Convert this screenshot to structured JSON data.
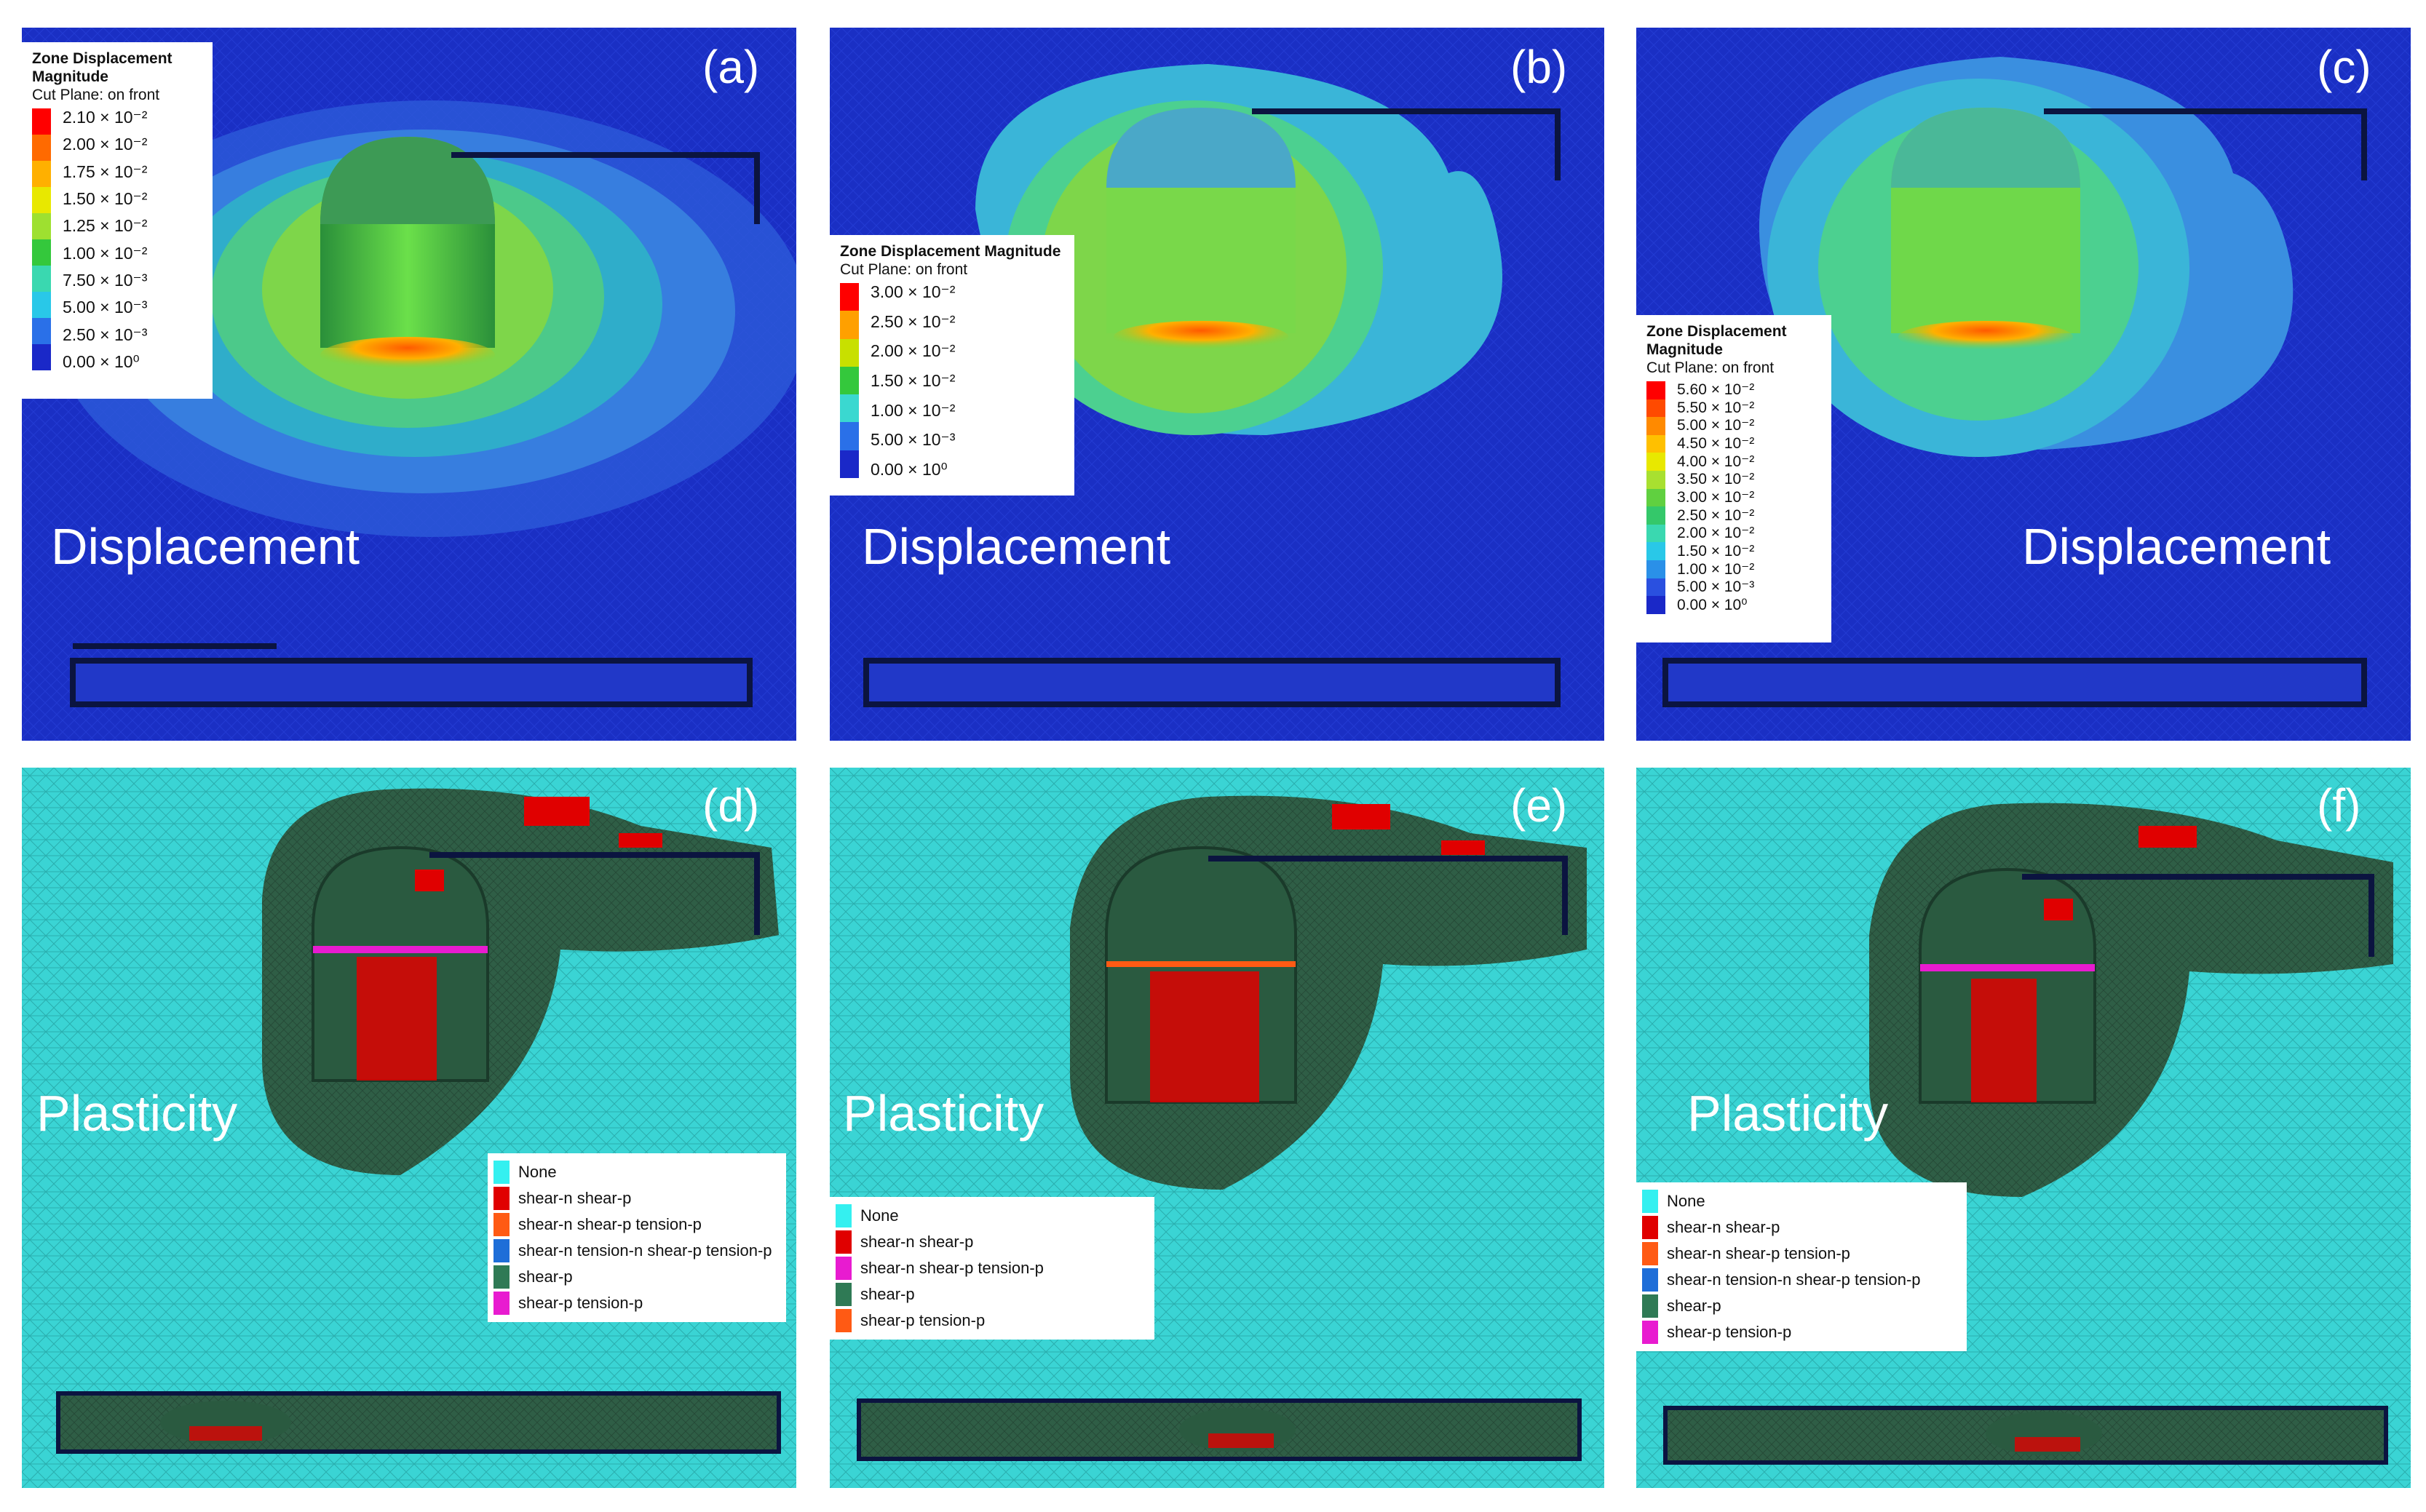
{
  "colors": {
    "blue_bg": "#1a2fc4",
    "mesh_cyan": "#34d3d3",
    "plastic_green": "#2f5e46",
    "shear_n_shear_p": "#e00000",
    "orange": "#ff5a14",
    "magenta": "#e81bd0",
    "tension_blue": "#1e6ed8"
  },
  "panels": {
    "a": {
      "label": "(a)",
      "title": "Displacement",
      "legend": {
        "line1": "Zone Displacement",
        "line2": "Magnitude",
        "sub": "Cut Plane: on front",
        "values": [
          "2.10 × 10⁻²",
          "2.00 × 10⁻²",
          "1.75 × 10⁻²",
          "1.50 × 10⁻²",
          "1.25 × 10⁻²",
          "1.00 × 10⁻²",
          "7.50 × 10⁻³",
          "5.00 × 10⁻³",
          "2.50 × 10⁻³",
          "0.00 × 10⁰"
        ]
      }
    },
    "b": {
      "label": "(b)",
      "title": "Displacement",
      "legend": {
        "line1": "Zone Displacement Magnitude",
        "sub": "Cut Plane: on front",
        "values": [
          "3.00 × 10⁻²",
          "2.50 × 10⁻²",
          "2.00 × 10⁻²",
          "1.50 × 10⁻²",
          "1.00 × 10⁻²",
          "5.00 × 10⁻³",
          "0.00 × 10⁰"
        ]
      }
    },
    "c": {
      "label": "(c)",
      "title": "Displacement",
      "legend": {
        "line1": "Zone Displacement",
        "line2": "Magnitude",
        "sub": "Cut Plane: on front",
        "values": [
          "5.60 × 10⁻²",
          "5.50 × 10⁻²",
          "5.00 × 10⁻²",
          "4.50 × 10⁻²",
          "4.00 × 10⁻²",
          "3.50 × 10⁻²",
          "3.00 × 10⁻²",
          "2.50 × 10⁻²",
          "2.00 × 10⁻²",
          "1.50 × 10⁻²",
          "1.00 × 10⁻²",
          "5.00 × 10⁻³",
          "0.00 × 10⁰"
        ]
      }
    },
    "d": {
      "label": "(d)",
      "title": "Plasticity",
      "legend": [
        "None",
        "shear-n shear-p",
        "shear-n shear-p tension-p",
        "shear-n tension-n shear-p tension-p",
        "shear-p",
        "shear-p tension-p"
      ]
    },
    "e": {
      "label": "(e)",
      "title": "Plasticity",
      "legend": [
        "None",
        "shear-n shear-p",
        "shear-n shear-p tension-p",
        "shear-p",
        "shear-p tension-p"
      ]
    },
    "f": {
      "label": "(f)",
      "title": "Plasticity",
      "legend": [
        "None",
        "shear-n shear-p",
        "shear-n shear-p tension-p",
        "shear-n tension-n shear-p tension-p",
        "shear-p",
        "shear-p tension-p"
      ]
    }
  }
}
